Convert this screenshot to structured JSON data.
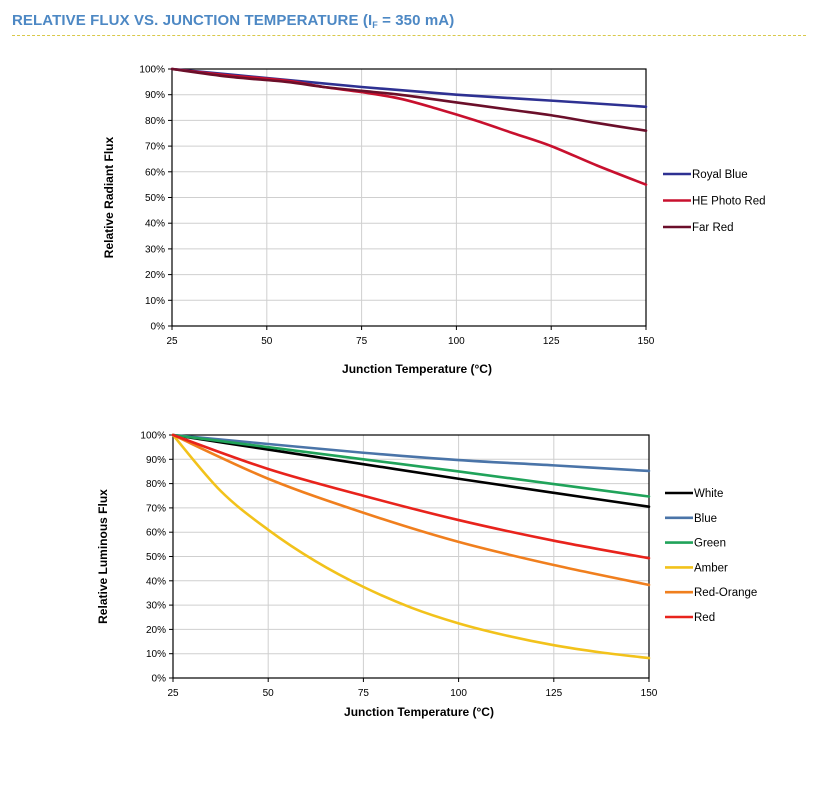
{
  "page": {
    "title_prefix": "RELATIVE FLUX VS. JUNCTION TEMPERATURE (I",
    "title_sub": "F",
    "title_suffix": " = 350 mA)"
  },
  "chart_data": [
    {
      "type": "line",
      "xlabel": "Junction Temperature (°C)",
      "ylabel": "Relative Radiant Flux",
      "xlim": [
        25,
        150
      ],
      "ylim": [
        0,
        100
      ],
      "xticks": [
        25,
        50,
        75,
        100,
        125,
        150
      ],
      "xtick_labels": [
        "25",
        "50",
        "75",
        "100",
        "125",
        "150"
      ],
      "yticks": [
        0,
        10,
        20,
        30,
        40,
        50,
        60,
        70,
        80,
        90,
        100
      ],
      "ytick_labels": [
        "0%",
        "10%",
        "20%",
        "30%",
        "40%",
        "50%",
        "60%",
        "70%",
        "80%",
        "90%",
        "100%"
      ],
      "grid": true,
      "legend_position": "right",
      "series": [
        {
          "name": "Royal Blue",
          "color": "#2e3192",
          "x": [
            25,
            50,
            75,
            100,
            125,
            150
          ],
          "y": [
            100,
            96.5,
            93,
            90,
            87.7,
            85.3
          ]
        },
        {
          "name": "HE Photo Red",
          "color": "#c8102e",
          "x": [
            25,
            40,
            55,
            65,
            75,
            85,
            95,
            105,
            115,
            125,
            137,
            150
          ],
          "y": [
            100,
            97.5,
            95.5,
            93,
            91,
            88.5,
            84.5,
            80,
            75,
            70,
            62.5,
            55
          ]
        },
        {
          "name": "Far Red",
          "color": "#6b0f2a",
          "x": [
            25,
            40,
            55,
            65,
            75,
            85,
            100,
            115,
            125,
            137,
            150
          ],
          "y": [
            100,
            97,
            95,
            93,
            91.5,
            90,
            87,
            84,
            82,
            79,
            76
          ]
        }
      ]
    },
    {
      "type": "line",
      "xlabel": "Junction Temperature (°C)",
      "ylabel": "Relative Luminous Flux",
      "xlim": [
        25,
        150
      ],
      "ylim": [
        0,
        100
      ],
      "xticks": [
        25,
        50,
        75,
        100,
        125,
        150
      ],
      "xtick_labels": [
        "25",
        "50",
        "75",
        "100",
        "125",
        "150"
      ],
      "yticks": [
        0,
        10,
        20,
        30,
        40,
        50,
        60,
        70,
        80,
        90,
        100
      ],
      "ytick_labels": [
        "0%",
        "10%",
        "20%",
        "30%",
        "40%",
        "50%",
        "60%",
        "70%",
        "80%",
        "90%",
        "100%"
      ],
      "grid": true,
      "legend_position": "right",
      "series": [
        {
          "name": "White",
          "color": "#000000",
          "x": [
            25,
            50,
            75,
            100,
            125,
            150
          ],
          "y": [
            100,
            94,
            88,
            82,
            76.2,
            70.5
          ]
        },
        {
          "name": "Blue",
          "color": "#4a74a8",
          "x": [
            25,
            50,
            75,
            100,
            125,
            150
          ],
          "y": [
            100,
            96.3,
            92.7,
            89.7,
            87.5,
            85.2
          ]
        },
        {
          "name": "Green",
          "color": "#20a35a",
          "x": [
            25,
            50,
            75,
            100,
            125,
            150
          ],
          "y": [
            100,
            95,
            90,
            85,
            79.8,
            74.7
          ]
        },
        {
          "name": "Amber",
          "color": "#f2c21b",
          "x": [
            25,
            37.5,
            50,
            62.5,
            75,
            87.5,
            100,
            112.5,
            125,
            137.5,
            150
          ],
          "y": [
            100,
            77,
            61,
            48,
            37.5,
            29,
            22.5,
            17.5,
            13.5,
            10.5,
            8.2
          ]
        },
        {
          "name": "Red-Orange",
          "color": "#f07f1e",
          "x": [
            25,
            50,
            75,
            100,
            125,
            150
          ],
          "y": [
            100,
            82,
            68,
            56,
            46.5,
            38.3
          ]
        },
        {
          "name": "Red",
          "color": "#e8231c",
          "x": [
            25,
            50,
            75,
            100,
            125,
            150
          ],
          "y": [
            100,
            86,
            75,
            65,
            56.5,
            49.3
          ]
        }
      ]
    }
  ]
}
